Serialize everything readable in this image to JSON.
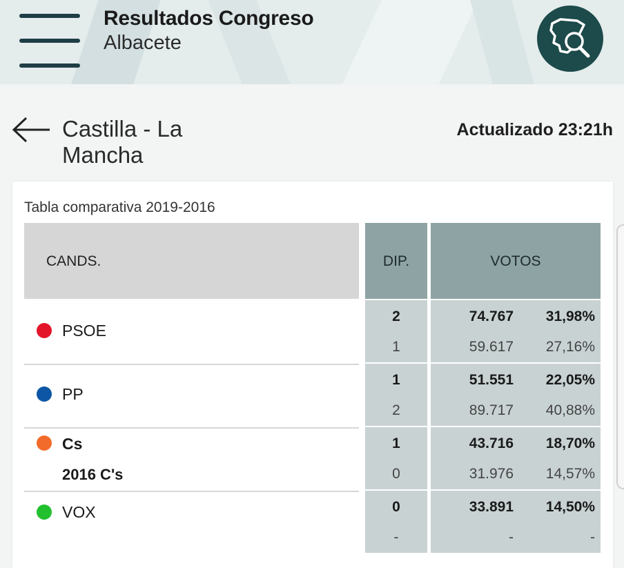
{
  "header": {
    "title": "Resultados Congreso",
    "subtitle": "Albacete",
    "menu_icon": "hamburger-icon",
    "logo_icon": "spain-map-search-icon",
    "logo_color": "#1d4a4a"
  },
  "region": {
    "back_icon": "arrow-left-icon",
    "title": "Castilla - La Mancha",
    "updated": "Actualizado 23:21h"
  },
  "table": {
    "caption": "Tabla comparativa 2019-2016",
    "headers": {
      "cands": "CANDS.",
      "dip": "DIP.",
      "votos": "VOTOS"
    },
    "rows": [
      {
        "party": "PSOE",
        "sub": "",
        "color": "#e3152b",
        "dip_2019": "2",
        "votos_2019": "74.767",
        "pct_2019": "31,98%",
        "dip_2016": "1",
        "votos_2016": "59.617",
        "pct_2016": "27,16%"
      },
      {
        "party": "PP",
        "sub": "",
        "color": "#0d56a6",
        "dip_2019": "1",
        "votos_2019": "51.551",
        "pct_2019": "22,05%",
        "dip_2016": "2",
        "votos_2016": "89.717",
        "pct_2016": "40,88%"
      },
      {
        "party": "Cs",
        "sub": "2016 C's",
        "color": "#f26b2b",
        "dip_2019": "1",
        "votos_2019": "43.716",
        "pct_2019": "18,70%",
        "dip_2016": "0",
        "votos_2016": "31.976",
        "pct_2016": "14,57%"
      },
      {
        "party": "VOX",
        "sub": "",
        "color": "#22c02f",
        "dip_2019": "0",
        "votos_2019": "33.891",
        "pct_2019": "14,50%",
        "dip_2016": "-",
        "votos_2016": "-",
        "pct_2016": "-"
      }
    ]
  }
}
